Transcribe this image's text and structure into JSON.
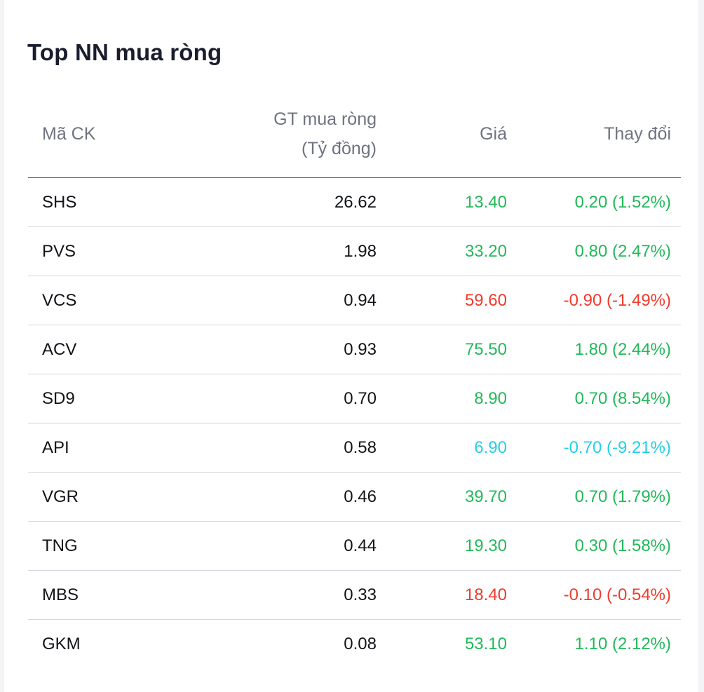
{
  "title": "Top NN mua ròng",
  "headers": {
    "symbol": "Mã CK",
    "net_line1": "GT mua ròng",
    "net_line2": "(Tỷ đồng)",
    "price": "Giá",
    "change": "Thay đổi"
  },
  "colors": {
    "up": "#22b95a",
    "down": "#ef3b2d",
    "floor": "#22d0e6"
  },
  "rows": [
    {
      "symbol": "SHS",
      "net": "26.62",
      "price": "13.40",
      "change": "0.20 (1.52%)",
      "status": "up"
    },
    {
      "symbol": "PVS",
      "net": "1.98",
      "price": "33.20",
      "change": "0.80 (2.47%)",
      "status": "up"
    },
    {
      "symbol": "VCS",
      "net": "0.94",
      "price": "59.60",
      "change": "-0.90 (-1.49%)",
      "status": "down"
    },
    {
      "symbol": "ACV",
      "net": "0.93",
      "price": "75.50",
      "change": "1.80 (2.44%)",
      "status": "up"
    },
    {
      "symbol": "SD9",
      "net": "0.70",
      "price": "8.90",
      "change": "0.70 (8.54%)",
      "status": "up"
    },
    {
      "symbol": "API",
      "net": "0.58",
      "price": "6.90",
      "change": "-0.70 (-9.21%)",
      "status": "floor"
    },
    {
      "symbol": "VGR",
      "net": "0.46",
      "price": "39.70",
      "change": "0.70 (1.79%)",
      "status": "up"
    },
    {
      "symbol": "TNG",
      "net": "0.44",
      "price": "19.30",
      "change": "0.30 (1.58%)",
      "status": "up"
    },
    {
      "symbol": "MBS",
      "net": "0.33",
      "price": "18.40",
      "change": "-0.10 (-0.54%)",
      "status": "down"
    },
    {
      "symbol": "GKM",
      "net": "0.08",
      "price": "53.10",
      "change": "1.10 (2.12%)",
      "status": "up"
    }
  ]
}
